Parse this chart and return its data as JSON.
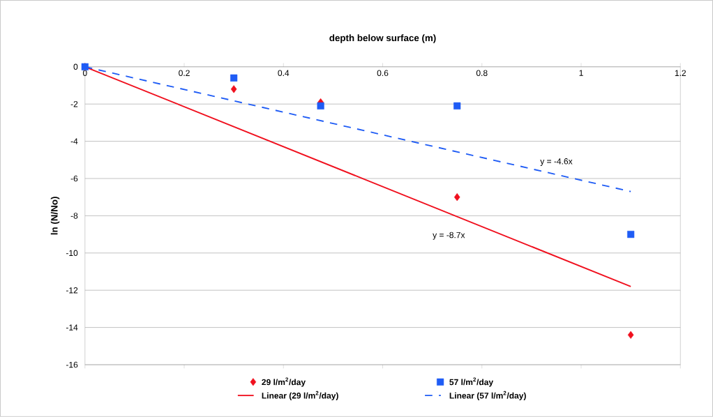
{
  "chart_data": {
    "type": "scatter",
    "xlabel": "depth below surface (m)",
    "ylabel": "ln (N/No)",
    "xlim": [
      0,
      1.2
    ],
    "xticks": [
      0,
      0.2,
      0.4,
      0.6,
      0.8,
      1,
      1.2
    ],
    "ylim": [
      -16,
      0
    ],
    "yticks": [
      -16,
      -14,
      -12,
      -10,
      -8,
      -6,
      -4,
      -2,
      0
    ],
    "grid": "y",
    "legend": "bottom",
    "series": [
      {
        "name": "29 l/m$^{2}$/day",
        "marker": "diamond",
        "color": "#f0101e",
        "x": [
          0,
          0.3,
          0.475,
          0.75,
          1.1
        ],
        "values": [
          0,
          -1.2,
          -1.9,
          -7.0,
          -14.4
        ]
      },
      {
        "name": "57 l/m$^{2}$/day",
        "marker": "square",
        "color": "#1f5cf5",
        "x": [
          0,
          0.3,
          0.475,
          0.75,
          1.1
        ],
        "values": [
          0,
          -0.6,
          -2.1,
          -2.1,
          -9.0
        ]
      },
      {
        "name": "Linear (29 l/m$^{2}$/day)",
        "type": "line",
        "marker": "none",
        "line_style": "solid",
        "color": "#f0101e",
        "x": [
          0,
          1.1
        ],
        "values": [
          0,
          -11.8
        ]
      },
      {
        "name": "Linear (57 l/m$^{2}$/day)",
        "type": "line",
        "marker": "none",
        "line_style": "dashed",
        "color": "#1f5cf5",
        "x": [
          0,
          1.1
        ],
        "values": [
          0,
          -6.7
        ]
      }
    ],
    "annotations": [
      {
        "text": "y = -8.7x",
        "x": 0.78,
        "y": -8.4
      },
      {
        "text": "y = -4.6x",
        "x": 0.95,
        "y": -5.8
      }
    ]
  }
}
